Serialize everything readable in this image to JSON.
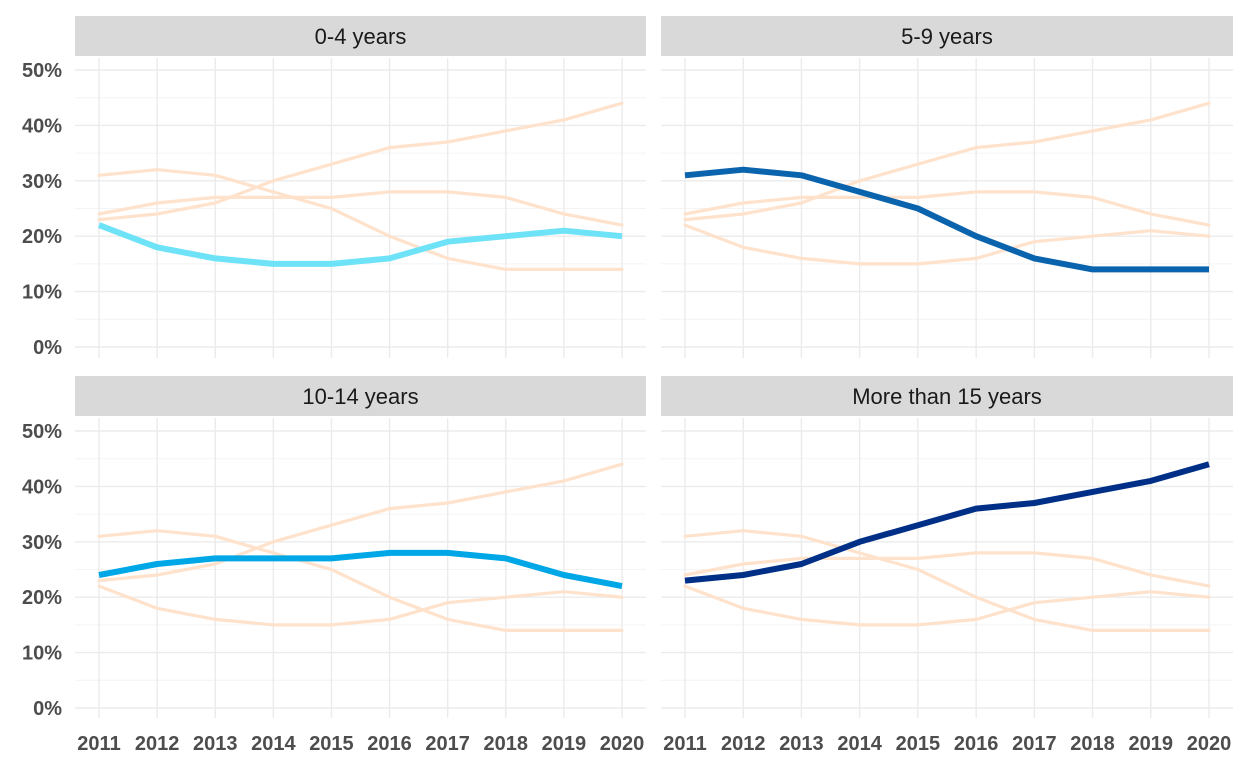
{
  "chart_data": {
    "type": "line",
    "layout": "facet-grid-2x2",
    "x": [
      "2011",
      "2012",
      "2013",
      "2014",
      "2015",
      "2016",
      "2017",
      "2018",
      "2019",
      "2020"
    ],
    "y_tick_labels": [
      "0%",
      "10%",
      "20%",
      "30%",
      "40%",
      "50%"
    ],
    "ylim": [
      0,
      50
    ],
    "grid": true,
    "legend": "none",
    "series": [
      {
        "key": "a",
        "color": "#6EE2F7",
        "values": [
          22,
          18,
          16,
          15,
          15,
          16,
          19,
          20,
          21,
          20
        ]
      },
      {
        "key": "b",
        "color": "#0A63AD",
        "values": [
          31,
          32,
          31,
          28,
          25,
          20,
          16,
          14,
          14,
          14
        ]
      },
      {
        "key": "c",
        "color": "#00A7E6",
        "values": [
          24,
          26,
          27,
          27,
          27,
          28,
          28,
          27,
          24,
          22
        ]
      },
      {
        "key": "d",
        "color": "#002F87",
        "values": [
          23,
          24,
          26,
          30,
          33,
          36,
          37,
          39,
          41,
          44
        ]
      }
    ],
    "background_series_color": "#FFE2CC",
    "panels": [
      {
        "title": "0-4 years",
        "highlight": "a"
      },
      {
        "title": "5-9 years",
        "highlight": "b"
      },
      {
        "title": "10-14 years",
        "highlight": "c"
      },
      {
        "title": "More than 15 years",
        "highlight": "d"
      }
    ]
  }
}
